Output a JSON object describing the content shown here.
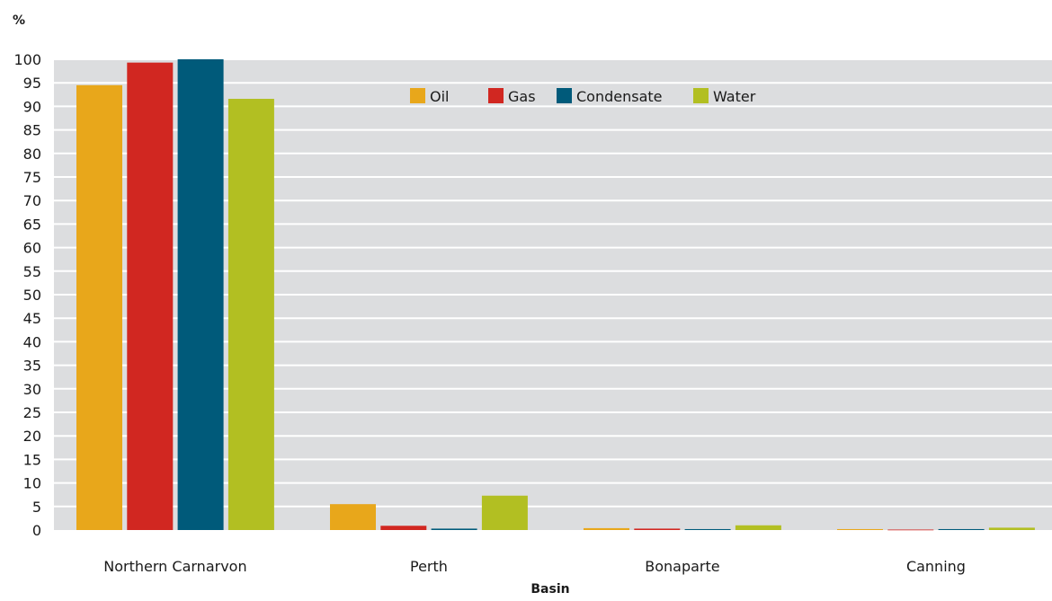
{
  "chart_data": {
    "type": "bar",
    "ylabel": "%",
    "xlabel": "Basin",
    "ylim": [
      0,
      100
    ],
    "yticks": [
      0,
      5,
      10,
      15,
      20,
      25,
      30,
      35,
      40,
      45,
      50,
      55,
      60,
      65,
      70,
      75,
      80,
      85,
      90,
      95,
      100
    ],
    "grid": true,
    "legend_position": "top-center",
    "categories": [
      "Northern Carnarvon",
      "Perth",
      "Bonaparte",
      "Canning"
    ],
    "series": [
      {
        "name": "Oil",
        "color": "#e8a71b",
        "values": [
          94.5,
          5.5,
          0.4,
          0.2
        ]
      },
      {
        "name": "Gas",
        "color": "#d12721",
        "values": [
          99.3,
          0.9,
          0.3,
          0.1
        ]
      },
      {
        "name": "Condensate",
        "color": "#005a7a",
        "values": [
          100,
          0.3,
          0.2,
          0.2
        ]
      },
      {
        "name": "Water",
        "color": "#b2bf22",
        "values": [
          91.6,
          7.3,
          1.0,
          0.5
        ]
      }
    ],
    "plot_background": "#dcdddf",
    "gridline_color": "#ffffff"
  }
}
